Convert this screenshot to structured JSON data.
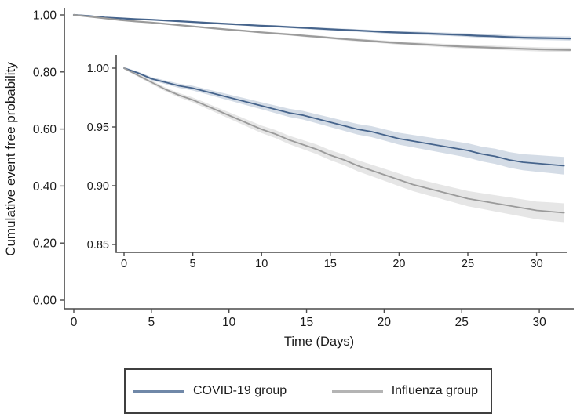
{
  "figure": {
    "background": "#ffffff",
    "text_color": "#1a1a1a",
    "axis_color": "#4a4a4a"
  },
  "legend": {
    "position": "bottom-center-box",
    "items": [
      {
        "label": "COVID-19 group",
        "color": "#7088a8"
      },
      {
        "label": "Influenza group",
        "color": "#b4b4b4"
      }
    ]
  },
  "chart_data": {
    "type": "line",
    "title": "",
    "xlabel": "Time (Days)",
    "ylabel": "Cumulative event free probability",
    "grid": false,
    "main_axis": {
      "xlim": [
        0,
        32
      ],
      "ylim": [
        0.0,
        1.0
      ],
      "xticks": [
        {
          "v": 0,
          "label": "0"
        },
        {
          "v": 5,
          "label": "5"
        },
        {
          "v": 10,
          "label": "10"
        },
        {
          "v": 15,
          "label": "15"
        },
        {
          "v": 20,
          "label": "20"
        },
        {
          "v": 25,
          "label": "25"
        },
        {
          "v": 30,
          "label": "30"
        }
      ],
      "yticks": [
        {
          "v": 0.0,
          "label": "0.00"
        },
        {
          "v": 0.2,
          "label": "0.20"
        },
        {
          "v": 0.4,
          "label": "0.40"
        },
        {
          "v": 0.6,
          "label": "0.60"
        },
        {
          "v": 0.8,
          "label": "0.80"
        },
        {
          "v": 1.0,
          "label": "1.00"
        }
      ]
    },
    "inset_axis": {
      "xlim": [
        0,
        32
      ],
      "ylim": [
        0.85,
        1.0
      ],
      "xticks": [
        {
          "v": 0,
          "label": "0"
        },
        {
          "v": 5,
          "label": "5"
        },
        {
          "v": 10,
          "label": "10"
        },
        {
          "v": 15,
          "label": "15"
        },
        {
          "v": 20,
          "label": "20"
        },
        {
          "v": 25,
          "label": "25"
        },
        {
          "v": 30,
          "label": "30"
        }
      ],
      "yticks": [
        {
          "v": 0.85,
          "label": "0.85"
        },
        {
          "v": 0.9,
          "label": "0.90"
        },
        {
          "v": 0.95,
          "label": "0.95"
        },
        {
          "v": 1.0,
          "label": "1.00"
        }
      ]
    },
    "x": [
      0,
      1,
      2,
      3,
      4,
      5,
      6,
      7,
      8,
      9,
      10,
      11,
      12,
      13,
      14,
      15,
      16,
      17,
      18,
      19,
      20,
      21,
      22,
      23,
      24,
      25,
      26,
      27,
      28,
      29,
      30,
      31,
      32
    ],
    "series": [
      {
        "name": "COVID-19 group",
        "color": "#46648c",
        "band_color": "#cdd6e2",
        "ci_half_width_start": 0.001,
        "ci_half_width_end": 0.0075,
        "values": [
          1.0,
          0.996,
          0.991,
          0.988,
          0.985,
          0.983,
          0.98,
          0.977,
          0.974,
          0.971,
          0.968,
          0.965,
          0.962,
          0.96,
          0.957,
          0.954,
          0.951,
          0.948,
          0.946,
          0.943,
          0.94,
          0.938,
          0.936,
          0.934,
          0.932,
          0.93,
          0.927,
          0.925,
          0.922,
          0.92,
          0.919,
          0.918,
          0.917
        ]
      },
      {
        "name": "Influenza group",
        "color": "#9b9b9b",
        "band_color": "#e2e2e2",
        "ci_half_width_start": 0.001,
        "ci_half_width_end": 0.008,
        "values": [
          1.0,
          0.994,
          0.988,
          0.982,
          0.977,
          0.973,
          0.968,
          0.963,
          0.958,
          0.953,
          0.948,
          0.944,
          0.939,
          0.935,
          0.931,
          0.926,
          0.922,
          0.917,
          0.913,
          0.909,
          0.905,
          0.901,
          0.898,
          0.895,
          0.892,
          0.889,
          0.887,
          0.885,
          0.883,
          0.881,
          0.879,
          0.878,
          0.877
        ]
      }
    ]
  }
}
